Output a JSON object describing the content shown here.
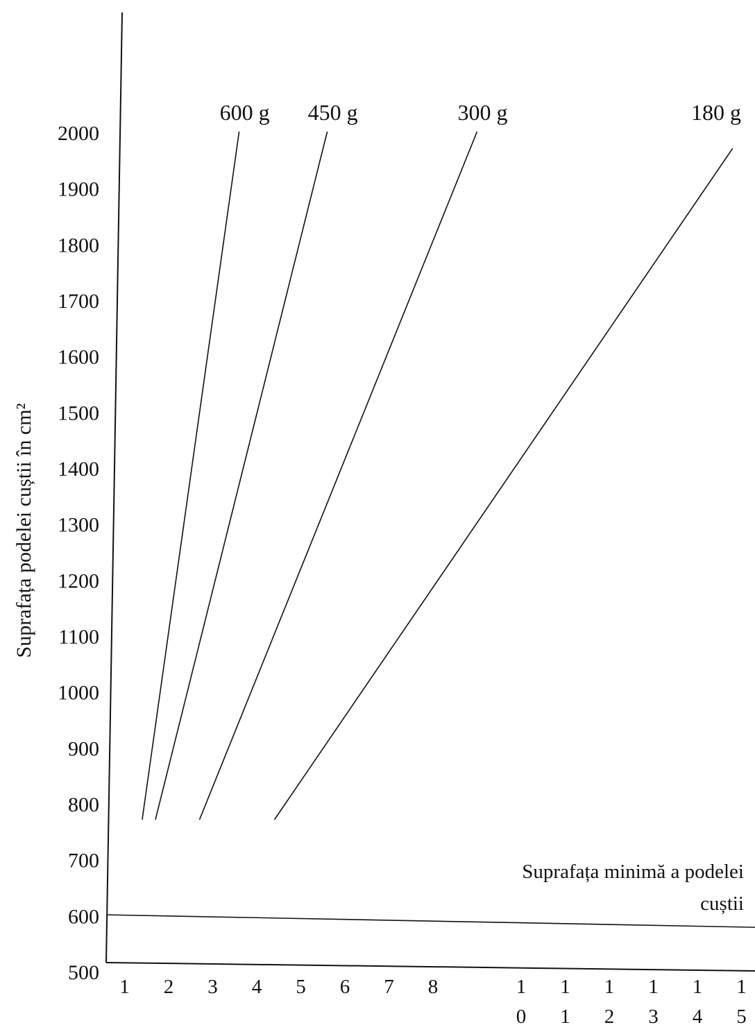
{
  "chart_data": {
    "type": "line",
    "title": "",
    "xlabel": "",
    "ylabel": "Suprafața podelei cuștii în cm²",
    "ylim": [
      500,
      2000
    ],
    "yticks": [
      "500",
      "600",
      "700",
      "800",
      "900",
      "1000",
      "1100",
      "1200",
      "1300",
      "1400",
      "1500",
      "1600",
      "1700",
      "1800",
      "1900",
      "2000"
    ],
    "xticks": [
      {
        "value": 1,
        "lines": [
          "1"
        ]
      },
      {
        "value": 2,
        "lines": [
          "2"
        ]
      },
      {
        "value": 3,
        "lines": [
          "3"
        ]
      },
      {
        "value": 4,
        "lines": [
          "4"
        ]
      },
      {
        "value": 5,
        "lines": [
          "5"
        ]
      },
      {
        "value": 6,
        "lines": [
          "6"
        ]
      },
      {
        "value": 7,
        "lines": [
          "7"
        ]
      },
      {
        "value": 8,
        "lines": [
          "8"
        ]
      },
      {
        "value": 10,
        "lines": [
          "1",
          "0"
        ]
      },
      {
        "value": 11,
        "lines": [
          "1",
          "1"
        ]
      },
      {
        "value": 12,
        "lines": [
          "1",
          "2"
        ]
      },
      {
        "value": 13,
        "lines": [
          "1",
          "3"
        ]
      },
      {
        "value": 14,
        "lines": [
          "1",
          "4"
        ]
      },
      {
        "value": 15,
        "lines": [
          "1",
          "5"
        ]
      }
    ],
    "series": [
      {
        "name": "600 g",
        "points": [
          [
            1.4,
            800
          ],
          [
            3.6,
            2030
          ]
        ]
      },
      {
        "name": "450 g",
        "points": [
          [
            1.7,
            800
          ],
          [
            5.6,
            2030
          ]
        ]
      },
      {
        "name": "300 g",
        "points": [
          [
            2.7,
            800
          ],
          [
            9.0,
            2030
          ]
        ]
      },
      {
        "name": "180 g",
        "points": [
          [
            4.4,
            800
          ],
          [
            14.8,
            2000
          ]
        ]
      }
    ],
    "reference_line": {
      "value": 630,
      "label_lines": [
        "Suprafața minimă a podelei",
        "cuștii"
      ]
    }
  }
}
